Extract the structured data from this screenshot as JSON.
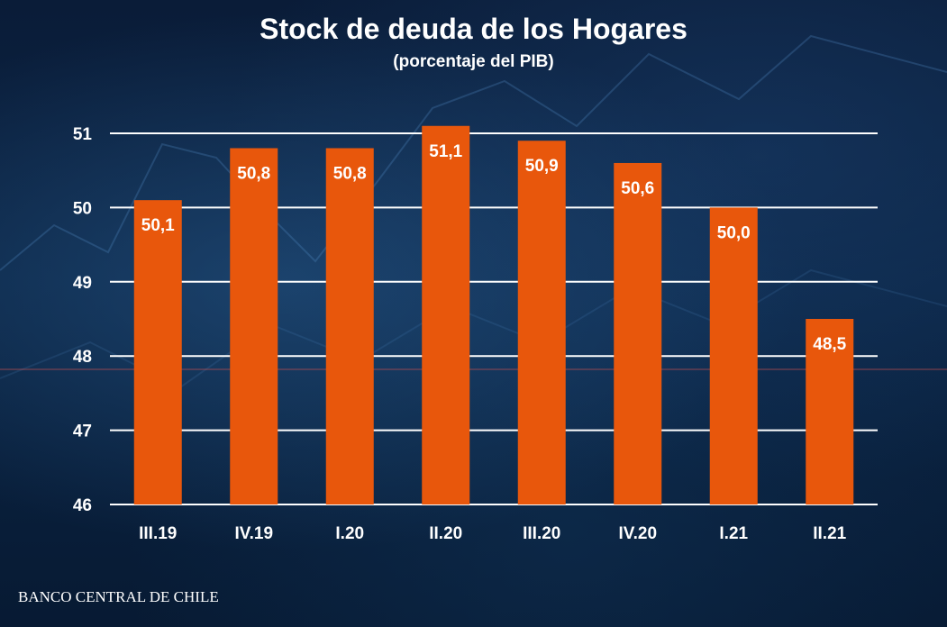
{
  "colors": {
    "bar": "#e8570c",
    "grid": "#ffffff",
    "text": "#ffffff"
  },
  "chart_data": {
    "type": "bar",
    "title": "Stock de deuda de los Hogares",
    "subtitle": "(porcentaje del PIB)",
    "categories": [
      "III.19",
      "IV.19",
      "I.20",
      "II.20",
      "III.20",
      "IV.20",
      "I.21",
      "II.21"
    ],
    "values": [
      50.1,
      50.8,
      50.8,
      51.1,
      50.9,
      50.6,
      50.0,
      48.5
    ],
    "labels": [
      "50,1",
      "50,8",
      "50,8",
      "51,1",
      "50,9",
      "50,6",
      "50,0",
      "48,5"
    ],
    "yticks": [
      "46",
      "47",
      "48",
      "49",
      "50",
      "51"
    ],
    "ylim": [
      46,
      51
    ],
    "xlabel": "",
    "ylabel": "",
    "grid": true
  },
  "source": "BANCO CENTRAL DE CHILE"
}
